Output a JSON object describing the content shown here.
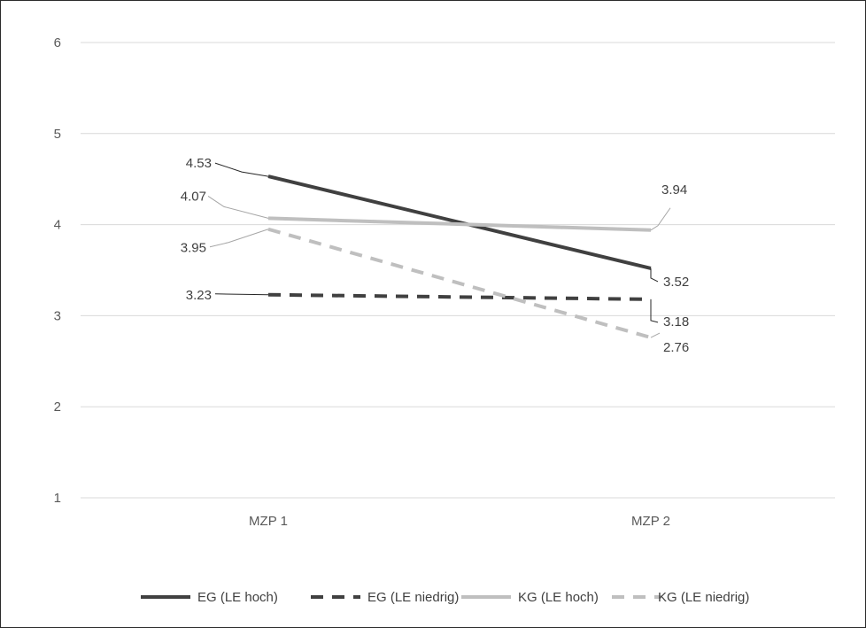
{
  "chart_data": {
    "type": "line",
    "title": "",
    "xlabel": "",
    "ylabel": "",
    "categories": [
      "MZP 1",
      "MZP 2"
    ],
    "ylim": [
      1,
      6
    ],
    "yticks": [
      "1",
      "2",
      "3",
      "4",
      "5",
      "6"
    ],
    "grid": true,
    "legend_position": "bottom",
    "series": [
      {
        "name": "EG (LE hoch)",
        "values": [
          4.53,
          3.52
        ],
        "labels": [
          "4.53",
          "3.52"
        ],
        "color": "#404040",
        "style": "solid"
      },
      {
        "name": "EG (LE niedrig)",
        "values": [
          3.23,
          3.18
        ],
        "labels": [
          "3.23",
          "3.18"
        ],
        "color": "#404040",
        "style": "dashed"
      },
      {
        "name": "KG (LE hoch)",
        "values": [
          4.07,
          3.94
        ],
        "labels": [
          "4.07",
          "3.94"
        ],
        "color": "#bfbfbf",
        "style": "solid"
      },
      {
        "name": "KG (LE niedrig)",
        "values": [
          3.95,
          2.76
        ],
        "labels": [
          "3.95",
          "2.76"
        ],
        "color": "#bfbfbf",
        "style": "dashed"
      }
    ]
  }
}
